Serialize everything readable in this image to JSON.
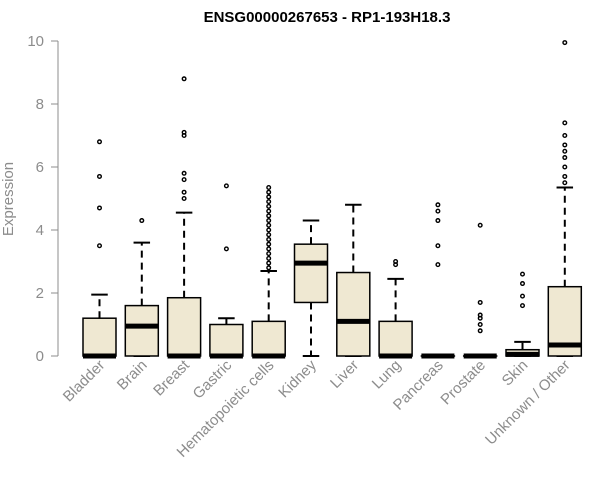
{
  "chart_data": {
    "type": "boxplot",
    "title": "ENSG00000267653 - RP1-193H18.3",
    "xlabel": "",
    "ylabel": "Expression",
    "ylim": [
      0,
      10
    ],
    "yticks": [
      0,
      2,
      4,
      6,
      8,
      10
    ],
    "grid": false,
    "box_color": "#efe8d2",
    "categories": [
      "Bladder",
      "Brain",
      "Breast",
      "Gastric",
      "Hematopoietic cells",
      "Kidney",
      "Liver",
      "Lung",
      "Pancreas",
      "Prostate",
      "Skin",
      "Unknown / Other"
    ],
    "boxes": [
      {
        "whisker_low": 0,
        "q1": 0,
        "median": 0,
        "q3": 1.2,
        "whisker_high": 1.95,
        "outliers": [
          3.5,
          4.7,
          5.7,
          6.8
        ]
      },
      {
        "whisker_low": 0,
        "q1": 0,
        "median": 0.95,
        "q3": 1.6,
        "whisker_high": 3.6,
        "outliers": [
          4.3
        ]
      },
      {
        "whisker_low": 0,
        "q1": 0,
        "median": 0,
        "q3": 1.85,
        "whisker_high": 4.55,
        "outliers": [
          5.0,
          5.2,
          5.6,
          5.8,
          7.0,
          7.1,
          8.8
        ]
      },
      {
        "whisker_low": 0,
        "q1": 0,
        "median": 0,
        "q3": 1.0,
        "whisker_high": 1.2,
        "outliers": [
          3.4,
          5.4
        ]
      },
      {
        "whisker_low": 0,
        "q1": 0,
        "median": 0,
        "q3": 1.1,
        "whisker_high": 2.7,
        "outliers": [
          2.8,
          2.95,
          3.1,
          3.25,
          3.4,
          3.55,
          3.7,
          3.85,
          4.0,
          4.15,
          4.3,
          4.45,
          4.6,
          4.75,
          4.9,
          5.05,
          5.2,
          5.35
        ]
      },
      {
        "whisker_low": 0,
        "q1": 1.7,
        "median": 2.95,
        "q3": 3.55,
        "whisker_high": 4.3,
        "outliers": []
      },
      {
        "whisker_low": 0,
        "q1": 0,
        "median": 1.1,
        "q3": 2.65,
        "whisker_high": 4.8,
        "outliers": []
      },
      {
        "whisker_low": 0,
        "q1": 0,
        "median": 0,
        "q3": 1.1,
        "whisker_high": 2.45,
        "outliers": [
          2.9,
          3.0
        ]
      },
      {
        "whisker_low": 0,
        "q1": 0,
        "median": 0,
        "q3": 0,
        "whisker_high": 0,
        "outliers": [
          2.9,
          3.5,
          4.3,
          4.6,
          4.8
        ]
      },
      {
        "whisker_low": 0,
        "q1": 0,
        "median": 0,
        "q3": 0,
        "whisker_high": 0,
        "outliers": [
          0.8,
          1.0,
          1.2,
          1.3,
          1.7,
          4.15
        ]
      },
      {
        "whisker_low": 0,
        "q1": 0,
        "median": 0.05,
        "q3": 0.2,
        "whisker_high": 0.45,
        "outliers": [
          1.6,
          1.9,
          2.3,
          2.6
        ]
      },
      {
        "whisker_low": 0,
        "q1": 0,
        "median": 0.35,
        "q3": 2.2,
        "whisker_high": 5.35,
        "outliers": [
          5.5,
          5.7,
          6.0,
          6.3,
          6.5,
          6.7,
          7.0,
          7.4,
          9.95
        ]
      }
    ]
  }
}
